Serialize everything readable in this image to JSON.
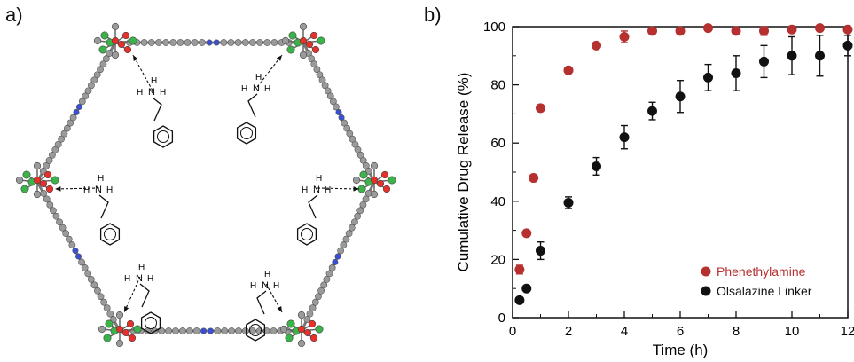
{
  "panels": {
    "a_label": "a)",
    "b_label": "b)"
  },
  "schematic": {
    "atom_colors": {
      "carbon": "#9a9a9a",
      "oxygen": "#e8302a",
      "metal": "#3bb34a",
      "nitrogen": "#3a4fd8"
    },
    "amine_labels": {
      "h_upper": "H",
      "n": "N",
      "h_right": "H",
      "h_lower": "H"
    }
  },
  "chart_data": {
    "type": "scatter",
    "xlabel": "Time (h)",
    "ylabel": "Cumulative Drug Release (%)",
    "xlim": [
      0,
      12
    ],
    "ylim": [
      0,
      100
    ],
    "x_ticks": [
      "0",
      "2",
      "4",
      "6",
      "8",
      "10",
      "12"
    ],
    "y_ticks": [
      "0",
      "20",
      "40",
      "60",
      "80",
      "100"
    ],
    "grid": false,
    "legend_position": "bottom-right",
    "series": [
      {
        "name": "Phenethylamine",
        "color": "#b5302f",
        "points": [
          {
            "x": 0.25,
            "y": 16.5,
            "err": 1.5
          },
          {
            "x": 0.5,
            "y": 29,
            "err": 0
          },
          {
            "x": 0.75,
            "y": 48,
            "err": 0
          },
          {
            "x": 1,
            "y": 72,
            "err": 0
          },
          {
            "x": 2,
            "y": 85,
            "err": 0
          },
          {
            "x": 3,
            "y": 93.5,
            "err": 0
          },
          {
            "x": 4,
            "y": 96.5,
            "err": 2
          },
          {
            "x": 5,
            "y": 98.5,
            "err": 1
          },
          {
            "x": 6,
            "y": 98.5,
            "err": 0
          },
          {
            "x": 7,
            "y": 99.5,
            "err": 0
          },
          {
            "x": 8,
            "y": 98.5,
            "err": 0
          },
          {
            "x": 9,
            "y": 98.5,
            "err": 1.5
          },
          {
            "x": 10,
            "y": 99,
            "err": 0
          },
          {
            "x": 11,
            "y": 99.5,
            "err": 0
          },
          {
            "x": 12,
            "y": 99,
            "err": 0
          }
        ]
      },
      {
        "name": "Olsalazine Linker",
        "color": "#111111",
        "points": [
          {
            "x": 0.25,
            "y": 6,
            "err": 0
          },
          {
            "x": 0.5,
            "y": 10,
            "err": 0
          },
          {
            "x": 1,
            "y": 23,
            "err": 3
          },
          {
            "x": 2,
            "y": 39.5,
            "err": 2
          },
          {
            "x": 3,
            "y": 52,
            "err": 3
          },
          {
            "x": 4,
            "y": 62,
            "err": 4
          },
          {
            "x": 5,
            "y": 71,
            "err": 3
          },
          {
            "x": 6,
            "y": 76,
            "err": 5.5
          },
          {
            "x": 7,
            "y": 82.5,
            "err": 4.5
          },
          {
            "x": 8,
            "y": 84,
            "err": 6
          },
          {
            "x": 9,
            "y": 88,
            "err": 5.5
          },
          {
            "x": 10,
            "y": 90,
            "err": 6.5
          },
          {
            "x": 11,
            "y": 90,
            "err": 7
          },
          {
            "x": 12,
            "y": 93.5,
            "err": 3.5
          }
        ]
      }
    ]
  }
}
